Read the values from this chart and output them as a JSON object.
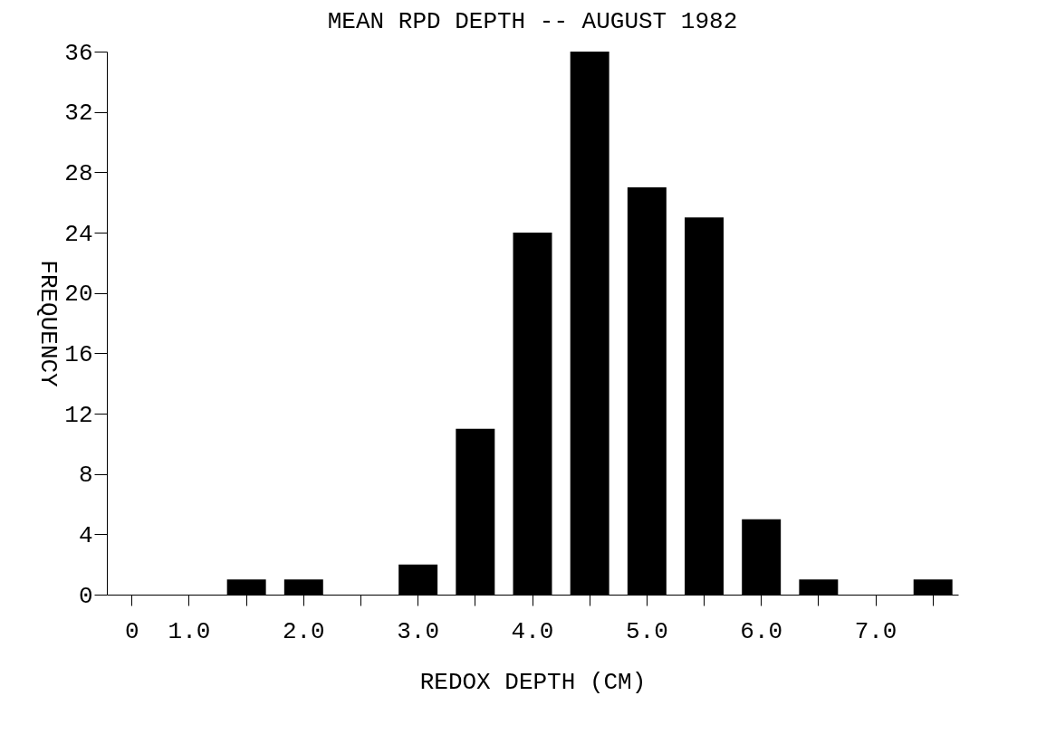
{
  "chart_data": {
    "type": "bar",
    "title": "MEAN RPD DEPTH -- AUGUST 1982",
    "xlabel": "REDOX DEPTH (CM)",
    "ylabel": "FREQUENCY",
    "categories": [
      "0",
      "1.0",
      null,
      "2.0",
      null,
      "3.0",
      null,
      "4.0",
      null,
      "5.0",
      null,
      "6.0",
      null,
      "7.0",
      null
    ],
    "values": [
      null,
      null,
      1,
      1,
      0,
      2,
      11,
      24,
      36,
      27,
      25,
      5,
      1,
      0,
      1
    ],
    "color": "#000000",
    "ylim": [
      0,
      36
    ],
    "yticks": [
      0,
      4,
      8,
      12,
      16,
      20,
      24,
      28,
      32,
      36
    ],
    "grid": false
  }
}
